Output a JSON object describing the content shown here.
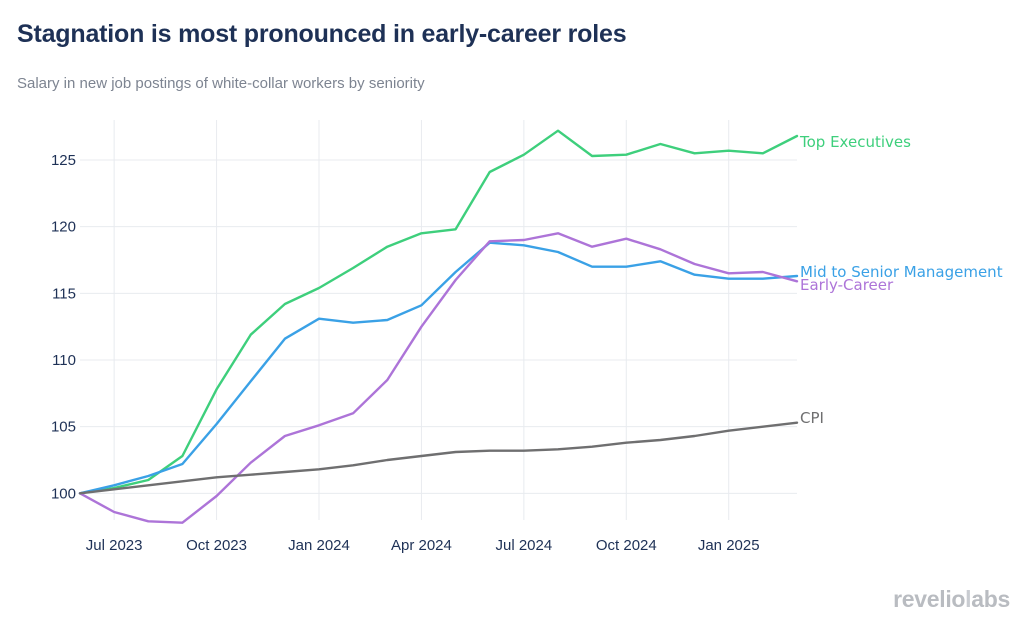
{
  "header": {
    "title": "Stagnation is most pronounced in early-career roles",
    "subtitle": "Salary in new job postings of white-collar workers by seniority"
  },
  "brand": {
    "logo_text": "revelio labs"
  },
  "chart_data": {
    "type": "line",
    "title": "Stagnation is most pronounced in early-career roles",
    "subtitle": "Salary in new job postings of white-collar workers by seniority",
    "xlabel": "",
    "ylabel": "",
    "x": [
      "2023-06",
      "2023-07",
      "2023-08",
      "2023-09",
      "2023-10",
      "2023-11",
      "2023-12",
      "2024-01",
      "2024-02",
      "2024-03",
      "2024-04",
      "2024-05",
      "2024-06",
      "2024-07",
      "2024-08",
      "2024-09",
      "2024-10",
      "2024-11",
      "2024-12",
      "2025-01",
      "2025-02",
      "2025-03"
    ],
    "x_ticks": [
      {
        "x": "2023-07",
        "label": "Jul 2023"
      },
      {
        "x": "2023-10",
        "label": "Oct 2023"
      },
      {
        "x": "2024-01",
        "label": "Jan 2024"
      },
      {
        "x": "2024-04",
        "label": "Apr 2024"
      },
      {
        "x": "2024-07",
        "label": "Jul 2024"
      },
      {
        "x": "2024-10",
        "label": "Oct 2024"
      },
      {
        "x": "2025-01",
        "label": "Jan 2025"
      }
    ],
    "y_ticks": [
      100,
      105,
      110,
      115,
      120,
      125
    ],
    "ylim": [
      98,
      128
    ],
    "xlim": [
      "2023-06",
      "2025-03"
    ],
    "grid": true,
    "legend": "end-of-line labels",
    "series": [
      {
        "name": "Top Executives",
        "color": "#3ecf7c",
        "values": [
          100,
          100.4,
          101.0,
          102.8,
          107.8,
          111.9,
          114.2,
          115.4,
          116.9,
          118.5,
          119.5,
          119.8,
          124.1,
          125.4,
          127.2,
          125.3,
          125.4,
          126.2,
          125.5,
          125.7,
          125.5,
          126.8
        ]
      },
      {
        "name": "Mid to Senior Management",
        "color": "#3aa1e6",
        "values": [
          100,
          100.6,
          101.3,
          102.2,
          105.2,
          108.4,
          111.6,
          113.1,
          112.8,
          113.0,
          114.1,
          116.6,
          118.8,
          118.6,
          118.1,
          117.0,
          117.0,
          117.4,
          116.4,
          116.1,
          116.1,
          116.3
        ]
      },
      {
        "name": "Early-Career",
        "color": "#ad74d8",
        "values": [
          100,
          98.6,
          97.9,
          97.8,
          99.8,
          102.3,
          104.3,
          105.1,
          106.0,
          108.5,
          112.5,
          116.0,
          118.9,
          119.0,
          119.5,
          118.5,
          119.1,
          118.3,
          117.2,
          116.5,
          116.6,
          115.9
        ]
      },
      {
        "name": "CPI",
        "color": "#6f6f70",
        "values": [
          100,
          100.3,
          100.6,
          100.9,
          101.2,
          101.4,
          101.6,
          101.8,
          102.1,
          102.5,
          102.8,
          103.1,
          103.2,
          103.2,
          103.3,
          103.5,
          103.8,
          104.0,
          104.3,
          104.7,
          105.0,
          105.3
        ]
      }
    ]
  }
}
